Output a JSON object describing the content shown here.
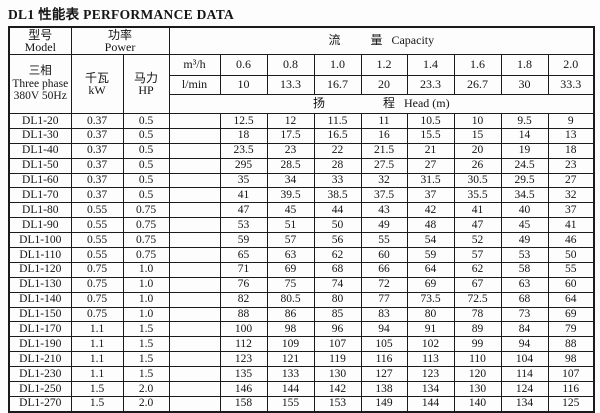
{
  "title": "DL1 性能表  PERFORMANCE DATA",
  "table": {
    "header": {
      "model_zh": "型号",
      "model_en": "Model",
      "power_zh": "功率",
      "power_en": "Power",
      "capacity_zh1": "流",
      "capacity_zh2": "量",
      "capacity_en": "Capacity",
      "phase_zh": "三相",
      "phase_en": "Three phase",
      "phase_spec": "380V 50Hz",
      "kw_zh": "千瓦",
      "kw_en": "kW",
      "hp_zh": "马力",
      "hp_en": "HP",
      "unit_m3h": "m³/h",
      "unit_lmin": "l/min",
      "head_zh1": "扬",
      "head_zh2": "程",
      "head_en": "Head (m)",
      "m3h_values": [
        "0.6",
        "0.8",
        "1.0",
        "1.2",
        "1.4",
        "1.6",
        "1.8",
        "2.0"
      ],
      "lmin_values": [
        "10",
        "13.3",
        "16.7",
        "20",
        "23.3",
        "26.7",
        "30",
        "33.3"
      ]
    },
    "rows": [
      {
        "model": "DL1-20",
        "kw": "0.37",
        "hp": "0.5",
        "head": [
          "12.5",
          "12",
          "11.5",
          "11",
          "10.5",
          "10",
          "9.5",
          "9"
        ]
      },
      {
        "model": "DL1-30",
        "kw": "0.37",
        "hp": "0.5",
        "head": [
          "18",
          "17.5",
          "16.5",
          "16",
          "15.5",
          "15",
          "14",
          "13"
        ]
      },
      {
        "model": "DL1-40",
        "kw": "0.37",
        "hp": "0.5",
        "head": [
          "23.5",
          "23",
          "22",
          "21.5",
          "21",
          "20",
          "19",
          "18"
        ]
      },
      {
        "model": "DL1-50",
        "kw": "0.37",
        "hp": "0.5",
        "head": [
          "295",
          "28.5",
          "28",
          "27.5",
          "27",
          "26",
          "24.5",
          "23"
        ]
      },
      {
        "model": "DL1-60",
        "kw": "0.37",
        "hp": "0.5",
        "head": [
          "35",
          "34",
          "33",
          "32",
          "31.5",
          "30.5",
          "29.5",
          "27"
        ]
      },
      {
        "model": "DL1-70",
        "kw": "0.37",
        "hp": "0.5",
        "head": [
          "41",
          "39.5",
          "38.5",
          "37.5",
          "37",
          "35.5",
          "34.5",
          "32"
        ]
      },
      {
        "model": "DL1-80",
        "kw": "0.55",
        "hp": "0.75",
        "head": [
          "47",
          "45",
          "44",
          "43",
          "42",
          "41",
          "40",
          "37"
        ]
      },
      {
        "model": "DL1-90",
        "kw": "0.55",
        "hp": "0.75",
        "head": [
          "53",
          "51",
          "50",
          "49",
          "48",
          "47",
          "45",
          "41"
        ]
      },
      {
        "model": "DL1-100",
        "kw": "0.55",
        "hp": "0.75",
        "head": [
          "59",
          "57",
          "56",
          "55",
          "54",
          "52",
          "49",
          "46"
        ]
      },
      {
        "model": "DL1-110",
        "kw": "0.55",
        "hp": "0.75",
        "head": [
          "65",
          "63",
          "62",
          "60",
          "59",
          "57",
          "53",
          "50"
        ]
      },
      {
        "model": "DL1-120",
        "kw": "0.75",
        "hp": "1.0",
        "head": [
          "71",
          "69",
          "68",
          "66",
          "64",
          "62",
          "58",
          "55"
        ]
      },
      {
        "model": "DL1-130",
        "kw": "0.75",
        "hp": "1.0",
        "head": [
          "76",
          "75",
          "74",
          "72",
          "69",
          "67",
          "63",
          "60"
        ]
      },
      {
        "model": "DL1-140",
        "kw": "0.75",
        "hp": "1.0",
        "head": [
          "82",
          "80.5",
          "80",
          "77",
          "73.5",
          "72.5",
          "68",
          "64"
        ]
      },
      {
        "model": "DL1-150",
        "kw": "0.75",
        "hp": "1.0",
        "head": [
          "88",
          "86",
          "85",
          "83",
          "80",
          "78",
          "73",
          "69"
        ]
      },
      {
        "model": "DL1-170",
        "kw": "1.1",
        "hp": "1.5",
        "head": [
          "100",
          "98",
          "96",
          "94",
          "91",
          "89",
          "84",
          "79"
        ]
      },
      {
        "model": "DL1-190",
        "kw": "1.1",
        "hp": "1.5",
        "head": [
          "112",
          "109",
          "107",
          "105",
          "102",
          "99",
          "94",
          "88"
        ]
      },
      {
        "model": "DL1-210",
        "kw": "1.1",
        "hp": "1.5",
        "head": [
          "123",
          "121",
          "119",
          "116",
          "113",
          "110",
          "104",
          "98"
        ]
      },
      {
        "model": "DL1-230",
        "kw": "1.1",
        "hp": "1.5",
        "head": [
          "135",
          "133",
          "130",
          "127",
          "123",
          "120",
          "114",
          "107"
        ]
      },
      {
        "model": "DL1-250",
        "kw": "1.5",
        "hp": "2.0",
        "head": [
          "146",
          "144",
          "142",
          "138",
          "134",
          "130",
          "124",
          "116"
        ]
      },
      {
        "model": "DL1-270",
        "kw": "1.5",
        "hp": "2.0",
        "head": [
          "158",
          "155",
          "153",
          "149",
          "144",
          "140",
          "134",
          "125"
        ]
      }
    ]
  }
}
